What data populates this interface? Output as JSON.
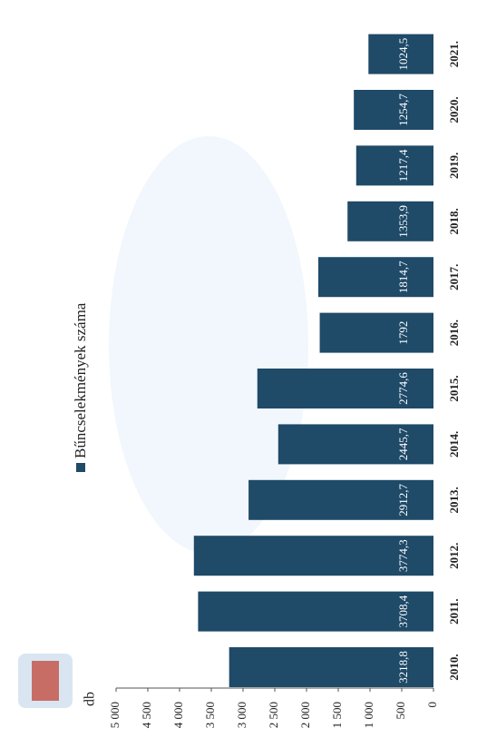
{
  "chart_data": {
    "type": "bar",
    "legend": "Bűncselekmények száma",
    "y_label": "db",
    "categories": [
      "2010.",
      "2011.",
      "2012.",
      "2013.",
      "2014.",
      "2015.",
      "2016.",
      "2017.",
      "2018.",
      "2019.",
      "2020.",
      "2021."
    ],
    "values": [
      3218.8,
      3708.4,
      3774.3,
      2912.7,
      2445.7,
      2774.6,
      1792,
      1814.7,
      1353.9,
      1217.4,
      1254.7,
      1024.5
    ],
    "value_labels": [
      "3218,8",
      "3708,4",
      "3774,3",
      "2912,7",
      "2445,7",
      "2774,6",
      "1792",
      "1814,7",
      "1353,9",
      "1217,4",
      "1254,7",
      "1024,5"
    ],
    "color": "#1f4a68",
    "ylim": [
      0,
      5000
    ],
    "yticks": [
      0,
      500,
      {
        "value": 1000,
        "label": "1 000"
      },
      {
        "value": 1500,
        "label": "1 500"
      },
      {
        "value": 2000,
        "label": "2 000"
      },
      {
        "value": 2500,
        "label": "2 500"
      },
      {
        "value": 3000,
        "label": "3 000"
      },
      {
        "value": 3500,
        "label": "3 500"
      },
      {
        "value": 4000,
        "label": "4 000"
      },
      {
        "value": 4500,
        "label": "4 500"
      },
      {
        "value": 5000,
        "label": "5 000"
      }
    ]
  }
}
